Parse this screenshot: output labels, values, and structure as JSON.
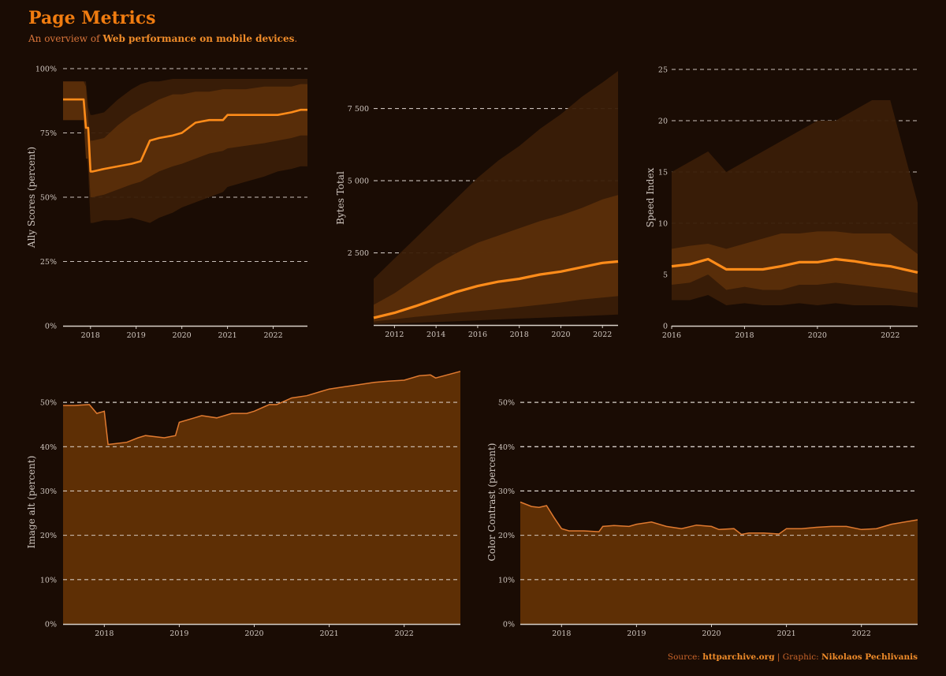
{
  "header": {
    "title": "Page Metrics",
    "subtitle_pre": "An overview of ",
    "subtitle_bold": "Web performance on mobile devices",
    "subtitle_post": "."
  },
  "footer": {
    "source_label": "Source: ",
    "source_value": "httparchive.org",
    "separator": " | ",
    "graphic_label": "Graphic: ",
    "graphic_value": "Nikolaos Pechlivanis"
  },
  "colors": {
    "background": "#1a0c04",
    "accent": "#ff8c1a",
    "band_outer": "#3a1d07",
    "band_mid": "#5a2e0a",
    "area_fill": "#5e2f05",
    "area_line": "#e07a30",
    "grid": "#e8e0da",
    "axis": "#d8d0c8"
  },
  "chart_data": [
    {
      "id": "a11y",
      "type": "area",
      "ylabel": "Ally Scores (percent)",
      "xlim": [
        2017.4,
        2022.75
      ],
      "ylim": [
        0,
        100
      ],
      "yticks": [
        0,
        25,
        50,
        75,
        100
      ],
      "ytick_labels": [
        "0%",
        "25%",
        "50%",
        "75%",
        "100%"
      ],
      "xticks": [
        2018,
        2019,
        2020,
        2021,
        2022
      ],
      "xtick_labels": [
        "2018",
        "2019",
        "2020",
        "2021",
        "2022"
      ],
      "x": [
        2017.4,
        2017.85,
        2017.9,
        2017.95,
        2018.0,
        2018.05,
        2018.3,
        2018.6,
        2018.9,
        2019.1,
        2019.3,
        2019.5,
        2019.8,
        2020.0,
        2020.3,
        2020.6,
        2020.9,
        2021.0,
        2021.4,
        2021.8,
        2022.1,
        2022.4,
        2022.6,
        2022.75
      ],
      "series": [
        {
          "name": "median",
          "values": [
            88,
            88,
            77,
            77,
            60,
            60,
            61,
            62,
            63,
            64,
            72,
            73,
            74,
            75,
            79,
            80,
            80,
            82,
            82,
            82,
            82,
            83,
            84,
            84
          ]
        },
        {
          "name": "p25",
          "values": [
            80,
            80,
            65,
            65,
            50,
            50,
            51,
            53,
            55,
            56,
            58,
            60,
            62,
            63,
            65,
            67,
            68,
            69,
            70,
            71,
            72,
            73,
            74,
            74
          ]
        },
        {
          "name": "p75",
          "values": [
            95,
            95,
            93,
            80,
            72,
            72,
            73,
            78,
            82,
            84,
            86,
            88,
            90,
            90,
            91,
            91,
            92,
            92,
            92,
            93,
            93,
            93,
            94,
            94
          ]
        },
        {
          "name": "p10",
          "values": [
            80,
            80,
            70,
            60,
            40,
            40,
            41,
            41,
            42,
            41,
            40,
            42,
            44,
            46,
            48,
            50,
            52,
            54,
            56,
            58,
            60,
            61,
            62,
            62
          ]
        },
        {
          "name": "p90",
          "values": [
            95,
            95,
            95,
            85,
            82,
            82,
            83,
            88,
            92,
            94,
            95,
            95,
            96,
            96,
            96,
            96,
            96,
            96,
            96,
            96,
            96,
            96,
            96,
            96
          ]
        }
      ]
    },
    {
      "id": "bytes",
      "type": "area",
      "ylabel": "Bytes Total",
      "xlim": [
        2011.0,
        2022.75
      ],
      "ylim": [
        0,
        8800
      ],
      "yticks": [
        2500,
        5000,
        7500
      ],
      "ytick_labels": [
        "2 500",
        "5 000",
        "7 500"
      ],
      "xticks": [
        2012,
        2014,
        2016,
        2018,
        2020,
        2022
      ],
      "xtick_labels": [
        "2012",
        "2014",
        "2016",
        "2018",
        "2020",
        "2022"
      ],
      "x": [
        2011.0,
        2012.0,
        2013.0,
        2014.0,
        2015.0,
        2016.0,
        2017.0,
        2018.0,
        2019.0,
        2020.0,
        2021.0,
        2022.0,
        2022.75
      ],
      "series": [
        {
          "name": "median",
          "values": [
            250,
            420,
            650,
            900,
            1150,
            1350,
            1500,
            1600,
            1750,
            1850,
            2000,
            2150,
            2200
          ]
        },
        {
          "name": "p25",
          "values": [
            120,
            200,
            280,
            350,
            420,
            480,
            550,
            620,
            700,
            780,
            880,
            950,
            1000
          ]
        },
        {
          "name": "p75",
          "values": [
            700,
            1100,
            1600,
            2100,
            2500,
            2850,
            3100,
            3350,
            3600,
            3800,
            4050,
            4350,
            4500
          ]
        },
        {
          "name": "p10",
          "values": [
            40,
            60,
            80,
            100,
            130,
            160,
            190,
            220,
            250,
            280,
            310,
            340,
            360
          ]
        },
        {
          "name": "p90",
          "values": [
            1600,
            2300,
            3000,
            3700,
            4400,
            5100,
            5700,
            6200,
            6800,
            7300,
            7900,
            8400,
            8800
          ]
        }
      ]
    },
    {
      "id": "speed",
      "type": "area",
      "ylabel": "Speed Index",
      "xlim": [
        2016.0,
        2022.75
      ],
      "ylim": [
        0,
        25
      ],
      "yticks": [
        0,
        5,
        10,
        15,
        20,
        25
      ],
      "ytick_labels": [
        "0",
        "5",
        "10",
        "15",
        "20",
        "25"
      ],
      "xticks": [
        2016,
        2018,
        2020,
        2022
      ],
      "xtick_labels": [
        "2016",
        "2018",
        "2020",
        "2022"
      ],
      "x": [
        2016.0,
        2016.5,
        2017.0,
        2017.5,
        2018.0,
        2018.5,
        2019.0,
        2019.5,
        2020.0,
        2020.5,
        2021.0,
        2021.5,
        2022.0,
        2022.75
      ],
      "series": [
        {
          "name": "median",
          "values": [
            5.8,
            6.0,
            6.5,
            5.5,
            5.5,
            5.5,
            5.8,
            6.2,
            6.2,
            6.5,
            6.3,
            6.0,
            5.8,
            5.2
          ]
        },
        {
          "name": "p25",
          "values": [
            4.0,
            4.2,
            5.0,
            3.5,
            3.8,
            3.5,
            3.5,
            4.0,
            4.0,
            4.2,
            4.0,
            3.8,
            3.6,
            3.2
          ]
        },
        {
          "name": "p75",
          "values": [
            7.5,
            7.8,
            8.0,
            7.5,
            8.0,
            8.5,
            9.0,
            9.0,
            9.2,
            9.2,
            9.0,
            9.0,
            9.0,
            7.0
          ]
        },
        {
          "name": "p10",
          "values": [
            2.5,
            2.5,
            3.0,
            2.0,
            2.2,
            2.0,
            2.0,
            2.2,
            2.0,
            2.2,
            2.0,
            2.0,
            2.0,
            1.8
          ]
        },
        {
          "name": "p90",
          "values": [
            15,
            16,
            17,
            15,
            16,
            17,
            18,
            19,
            20,
            20,
            21,
            22,
            22,
            12
          ]
        }
      ]
    },
    {
      "id": "image_alt",
      "type": "area",
      "ylabel": "Image alt (percent)",
      "xlim": [
        2017.45,
        2022.75
      ],
      "ylim": [
        0,
        55
      ],
      "yticks": [
        0,
        10,
        20,
        30,
        40,
        50
      ],
      "ytick_labels": [
        "0%",
        "10%",
        "20%",
        "30%",
        "40%",
        "50%"
      ],
      "xticks": [
        2018,
        2019,
        2020,
        2021,
        2022
      ],
      "xtick_labels": [
        "2018",
        "2019",
        "2020",
        "2021",
        "2022"
      ],
      "x": [
        2017.45,
        2017.6,
        2017.8,
        2017.9,
        2018.0,
        2018.05,
        2018.3,
        2018.45,
        2018.55,
        2018.8,
        2018.95,
        2019.0,
        2019.2,
        2019.3,
        2019.5,
        2019.7,
        2019.9,
        2020.0,
        2020.2,
        2020.3,
        2020.5,
        2020.7,
        2020.9,
        2021.0,
        2021.2,
        2021.4,
        2021.6,
        2021.8,
        2022.0,
        2022.2,
        2022.35,
        2022.42,
        2022.75
      ],
      "series": [
        {
          "name": "value",
          "values": [
            49.3,
            49.3,
            49.5,
            47.5,
            48.0,
            40.5,
            41.0,
            42.0,
            42.5,
            42.0,
            42.5,
            45.5,
            46.5,
            47.0,
            46.5,
            47.5,
            47.5,
            48.0,
            49.5,
            49.5,
            51.0,
            51.5,
            52.5,
            53.0,
            53.5,
            54.0,
            54.5,
            54.8,
            55.0,
            56.0,
            56.2,
            55.5,
            57.0
          ]
        }
      ]
    },
    {
      "id": "color_contrast",
      "type": "area",
      "ylabel": "Color Contrast (percent)",
      "xlim": [
        2017.45,
        2022.75
      ],
      "ylim": [
        0,
        55
      ],
      "yticks": [
        0,
        10,
        20,
        30,
        40,
        50
      ],
      "ytick_labels": [
        "0%",
        "10%",
        "20%",
        "30%",
        "40%",
        "50%"
      ],
      "xticks": [
        2018,
        2019,
        2020,
        2021,
        2022
      ],
      "xtick_labels": [
        "2018",
        "2019",
        "2020",
        "2021",
        "2022"
      ],
      "x": [
        2017.45,
        2017.6,
        2017.7,
        2017.8,
        2017.9,
        2018.0,
        2018.1,
        2018.3,
        2018.5,
        2018.55,
        2018.7,
        2018.9,
        2019.0,
        2019.2,
        2019.4,
        2019.6,
        2019.8,
        2020.0,
        2020.1,
        2020.3,
        2020.4,
        2020.5,
        2020.7,
        2020.9,
        2021.0,
        2021.2,
        2021.4,
        2021.6,
        2021.8,
        2022.0,
        2022.2,
        2022.4,
        2022.75
      ],
      "series": [
        {
          "name": "value",
          "values": [
            27.5,
            26.5,
            26.3,
            26.7,
            24.0,
            21.5,
            21.0,
            21.0,
            20.8,
            22.0,
            22.2,
            22.0,
            22.5,
            23.0,
            22.0,
            21.5,
            22.3,
            22.0,
            21.3,
            21.5,
            20.2,
            20.5,
            20.5,
            20.3,
            21.5,
            21.5,
            21.8,
            22.0,
            22.0,
            21.3,
            21.5,
            22.5,
            23.5
          ]
        }
      ]
    }
  ]
}
